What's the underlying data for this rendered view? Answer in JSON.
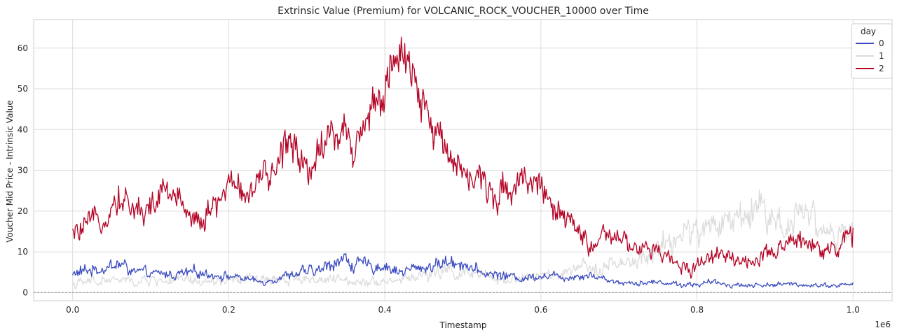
{
  "chart_data": {
    "type": "line",
    "title": "Extrinsic Value (Premium) for VOLCANIC_ROCK_VOUCHER_10000 over Time",
    "xlabel": "Timestamp",
    "ylabel": "Voucher Mid Price - Intrinsic Value",
    "x_offset_label": "1e6",
    "xlim": [
      -50000,
      1050000
    ],
    "ylim": [
      -2,
      67
    ],
    "x_ticks": [
      0,
      200000,
      400000,
      600000,
      800000,
      1000000
    ],
    "x_tick_labels": [
      "0.0",
      "0.2",
      "0.4",
      "0.6",
      "0.8",
      "1.0"
    ],
    "y_ticks": [
      0,
      10,
      20,
      30,
      40,
      50,
      60
    ],
    "y_tick_labels": [
      "0",
      "10",
      "20",
      "30",
      "40",
      "50",
      "60"
    ],
    "grid": true,
    "reference_line": {
      "y": 0,
      "style": "dashed",
      "color": "#888888"
    },
    "legend": {
      "title": "day",
      "placement": "top-right"
    },
    "series": [
      {
        "name": "0",
        "color": "#3b4cc0",
        "x": [
          0,
          20000,
          40000,
          60000,
          80000,
          100000,
          120000,
          140000,
          160000,
          180000,
          200000,
          220000,
          240000,
          260000,
          280000,
          300000,
          320000,
          340000,
          360000,
          380000,
          400000,
          420000,
          440000,
          460000,
          480000,
          500000,
          520000,
          540000,
          560000,
          580000,
          600000,
          620000,
          640000,
          660000,
          680000,
          700000,
          720000,
          740000,
          760000,
          780000,
          800000,
          820000,
          840000,
          860000,
          880000,
          900000,
          920000,
          940000,
          960000,
          980000,
          1000000
        ],
        "values": [
          4.5,
          5.5,
          6.0,
          7.0,
          5.0,
          4.5,
          4.5,
          4.5,
          5.0,
          4.5,
          4.0,
          3.5,
          2.5,
          3.5,
          4.5,
          5.0,
          5.5,
          8.5,
          7.0,
          6.5,
          6.5,
          5.0,
          6.0,
          6.5,
          7.5,
          7.5,
          5.0,
          4.5,
          4.0,
          3.5,
          4.5,
          4.0,
          4.0,
          4.5,
          3.5,
          2.5,
          2.5,
          2.5,
          2.5,
          2.0,
          2.0,
          2.5,
          2.0,
          1.8,
          1.8,
          2.0,
          2.0,
          2.0,
          1.8,
          1.8,
          2.0
        ],
        "amplitude": [
          1.3,
          1.3,
          1.3,
          1.8,
          1.2,
          1.0,
          1.0,
          1.2,
          1.2,
          1.0,
          0.9,
          0.8,
          0.7,
          0.8,
          1.0,
          1.2,
          1.2,
          2.0,
          1.5,
          1.4,
          1.4,
          1.2,
          1.2,
          1.3,
          1.5,
          1.5,
          1.1,
          1.0,
          1.0,
          0.9,
          1.0,
          0.9,
          0.9,
          1.0,
          0.8,
          0.6,
          0.6,
          0.6,
          0.6,
          0.6,
          0.6,
          0.6,
          0.5,
          0.5,
          0.5,
          0.5,
          0.5,
          0.5,
          0.5,
          0.5,
          0.6
        ]
      },
      {
        "name": "1",
        "color": "#dddcdc",
        "x": [
          0,
          20000,
          40000,
          60000,
          80000,
          100000,
          120000,
          140000,
          160000,
          180000,
          200000,
          220000,
          240000,
          260000,
          280000,
          300000,
          320000,
          340000,
          360000,
          380000,
          400000,
          420000,
          440000,
          460000,
          480000,
          500000,
          520000,
          540000,
          560000,
          580000,
          600000,
          620000,
          640000,
          660000,
          680000,
          700000,
          720000,
          740000,
          760000,
          780000,
          800000,
          820000,
          840000,
          860000,
          880000,
          900000,
          920000,
          940000,
          960000,
          980000,
          1000000
        ],
        "values": [
          2.0,
          2.5,
          3.0,
          3.0,
          2.5,
          3.0,
          3.0,
          3.0,
          2.5,
          2.5,
          3.0,
          3.0,
          3.5,
          3.5,
          3.5,
          3.5,
          3.0,
          3.0,
          3.0,
          3.0,
          3.0,
          3.0,
          4.0,
          4.5,
          5.5,
          4.5,
          4.0,
          3.5,
          3.5,
          3.5,
          4.0,
          4.0,
          5.0,
          6.0,
          7.0,
          6.5,
          7.0,
          9.0,
          12.0,
          14.0,
          15.0,
          16.0,
          18.0,
          19.0,
          22.0,
          17.0,
          18.0,
          21.0,
          16.0,
          13.0,
          14.0
        ],
        "amplitude": [
          0.9,
          1.0,
          1.2,
          1.2,
          1.0,
          1.1,
          1.1,
          1.1,
          1.0,
          1.0,
          1.1,
          1.1,
          1.2,
          1.2,
          1.2,
          1.2,
          1.1,
          1.1,
          1.1,
          1.1,
          1.1,
          1.1,
          1.2,
          1.3,
          1.5,
          1.3,
          1.2,
          1.1,
          1.1,
          1.1,
          1.2,
          1.2,
          1.4,
          1.6,
          1.8,
          1.8,
          2.0,
          2.4,
          2.8,
          3.0,
          3.2,
          3.4,
          3.6,
          3.8,
          4.0,
          3.6,
          3.6,
          3.8,
          3.4,
          2.8,
          2.8
        ]
      },
      {
        "name": "2",
        "color": "#b40426",
        "x": [
          0,
          20000,
          40000,
          60000,
          80000,
          100000,
          120000,
          140000,
          160000,
          180000,
          200000,
          220000,
          240000,
          260000,
          280000,
          300000,
          320000,
          340000,
          360000,
          380000,
          400000,
          420000,
          440000,
          460000,
          480000,
          500000,
          520000,
          540000,
          560000,
          580000,
          600000,
          620000,
          640000,
          660000,
          680000,
          700000,
          720000,
          740000,
          760000,
          780000,
          800000,
          820000,
          840000,
          860000,
          880000,
          900000,
          920000,
          940000,
          960000,
          980000,
          1000000
        ],
        "values": [
          14.0,
          16.0,
          19.0,
          24.0,
          20.0,
          21.0,
          25.0,
          22.0,
          18.0,
          20.0,
          27.0,
          25.0,
          26.0,
          30.0,
          40.0,
          30.0,
          37.0,
          40.0,
          36.0,
          45.0,
          50.0,
          57.0,
          50.0,
          40.0,
          37.0,
          30.0,
          27.0,
          24.0,
          26.0,
          29.0,
          27.0,
          18.0,
          17.0,
          12.0,
          13.0,
          13.0,
          11.0,
          10.0,
          9.0,
          6.0,
          7.0,
          9.0,
          10.0,
          7.0,
          8.0,
          9.0,
          13.0,
          13.0,
          11.0,
          11.0,
          14.0
        ],
        "amplitude": [
          2.2,
          2.5,
          2.8,
          3.2,
          3.0,
          3.0,
          3.3,
          3.0,
          2.8,
          3.0,
          3.3,
          3.0,
          3.2,
          3.6,
          4.5,
          4.0,
          4.2,
          4.5,
          4.0,
          4.8,
          5.5,
          5.5,
          5.0,
          4.5,
          4.0,
          3.8,
          3.5,
          3.2,
          3.5,
          3.6,
          3.2,
          2.8,
          2.5,
          2.3,
          2.2,
          2.2,
          2.0,
          2.0,
          1.8,
          1.8,
          1.8,
          1.9,
          2.0,
          1.8,
          1.8,
          2.0,
          2.2,
          2.2,
          2.0,
          2.0,
          2.4
        ]
      }
    ]
  }
}
